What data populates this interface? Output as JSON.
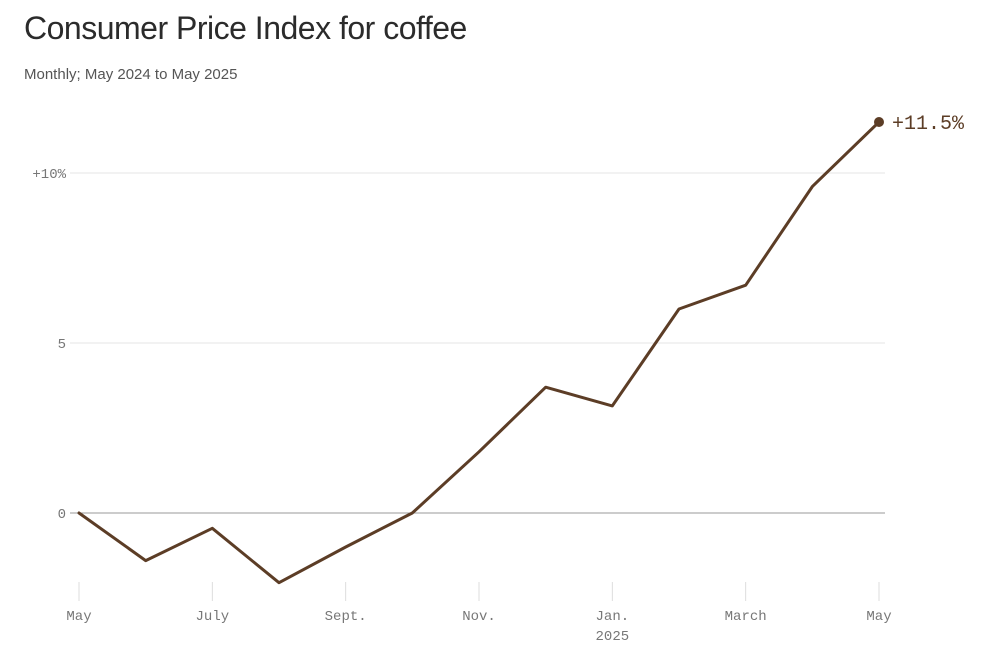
{
  "header": {
    "title": "Consumer Price Index for coffee",
    "subtitle": "Monthly; May 2024 to May 2025"
  },
  "chart_data": {
    "type": "line",
    "title": "Consumer Price Index for coffee",
    "subtitle": "Monthly; May 2024 to May 2025",
    "x": [
      "2024-05",
      "2024-06",
      "2024-07",
      "2024-08",
      "2024-09",
      "2024-10",
      "2024-11",
      "2024-12",
      "2025-01",
      "2025-02",
      "2025-03",
      "2025-04",
      "2025-05"
    ],
    "series": [
      {
        "values": [
          0,
          -1.4,
          -0.45,
          -2.05,
          -1.0,
          0,
          1.8,
          3.7,
          3.15,
          6.0,
          6.7,
          9.6,
          11.5
        ]
      }
    ],
    "ylim": [
      -2,
      11.5
    ],
    "y_ticks": [
      {
        "value": 10,
        "label": "+10%"
      },
      {
        "value": 5,
        "label": "5"
      },
      {
        "value": 0,
        "label": "0"
      }
    ],
    "x_ticks": [
      {
        "index": 0,
        "label": "May",
        "sublabel": ""
      },
      {
        "index": 2,
        "label": "July",
        "sublabel": ""
      },
      {
        "index": 4,
        "label": "Sept.",
        "sublabel": ""
      },
      {
        "index": 6,
        "label": "Nov.",
        "sublabel": ""
      },
      {
        "index": 8,
        "label": "Jan.",
        "sublabel": "2025"
      },
      {
        "index": 10,
        "label": "March",
        "sublabel": ""
      },
      {
        "index": 12,
        "label": "May",
        "sublabel": ""
      }
    ],
    "end_label": "+11.5%",
    "grid": true,
    "colors": {
      "line": "#5c3d26",
      "grid": "#e6e6e6",
      "zero_line": "#999999",
      "tick_text": "#777777"
    }
  }
}
